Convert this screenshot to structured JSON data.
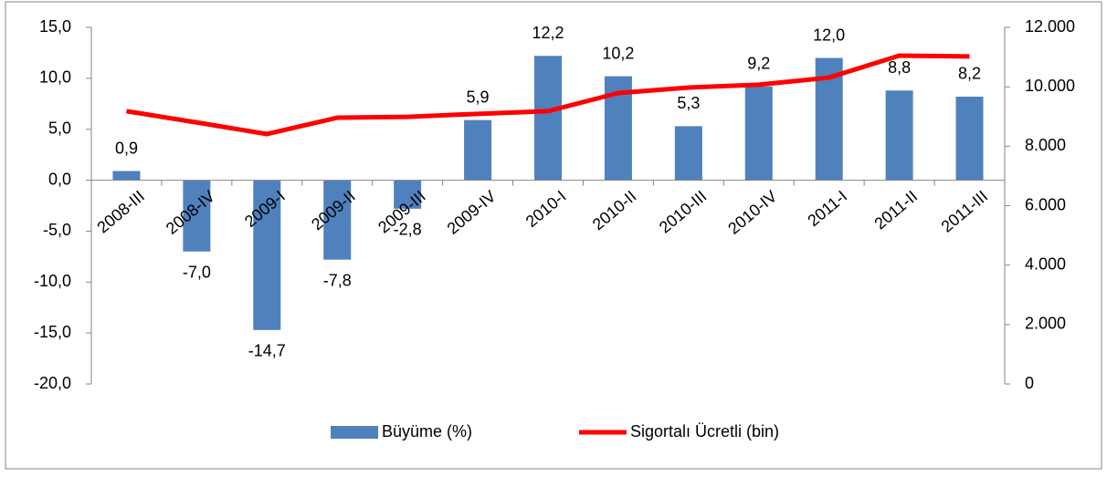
{
  "chart_data": {
    "type": "bar-line",
    "categories": [
      "2008-III",
      "2008-IV",
      "2009-I",
      "2009-II",
      "2009-III",
      "2009-IV",
      "2010-I",
      "2010-II",
      "2010-III",
      "2010-IV",
      "2011-I",
      "2011-II",
      "2011-III"
    ],
    "series": [
      {
        "name": "Büyüme (%)",
        "type": "bar",
        "color": "#4f81bd",
        "values": [
          0.9,
          -7.0,
          -14.7,
          -7.8,
          -2.8,
          5.9,
          12.2,
          10.2,
          5.3,
          9.2,
          12.0,
          8.8,
          8.2
        ],
        "value_labels": [
          "0,9",
          "-7,0",
          "-14,7",
          "-7,8",
          "-2,8",
          "5,9",
          "12,2",
          "10,2",
          "5,3",
          "9,2",
          "12,0",
          "8,8",
          "8,2"
        ]
      },
      {
        "name": "Sigortalı Ücretli (bin)",
        "type": "line",
        "color": "#ff0000",
        "axis": "y2",
        "values": [
          9180,
          8800,
          8410,
          8960,
          8990,
          9090,
          9180,
          9790,
          9975,
          10070,
          10310,
          11050,
          11020
        ]
      }
    ],
    "ylim": [
      -20,
      15
    ],
    "yticks": [
      {
        "value": -20,
        "label": "-20,0"
      },
      {
        "value": -15,
        "label": "-15,0"
      },
      {
        "value": -10,
        "label": "-10,0"
      },
      {
        "value": -5,
        "label": "-5,0"
      },
      {
        "value": 0,
        "label": "0,0"
      },
      {
        "value": 5,
        "label": "5,0"
      },
      {
        "value": 10,
        "label": "10,0"
      },
      {
        "value": 15,
        "label": "15,0"
      }
    ],
    "y2lim": [
      0,
      12000
    ],
    "y2ticks": [
      0,
      {
        "value": 2000,
        "label": "2.000"
      },
      {
        "value": 4000,
        "label": "4.000"
      },
      {
        "value": 6000,
        "label": "6.000"
      },
      {
        "value": 8000,
        "label": "8.000"
      },
      {
        "value": 10000,
        "label": "10.000"
      },
      {
        "value": 12000,
        "label": "12.000"
      }
    ],
    "legend": "bottom"
  }
}
